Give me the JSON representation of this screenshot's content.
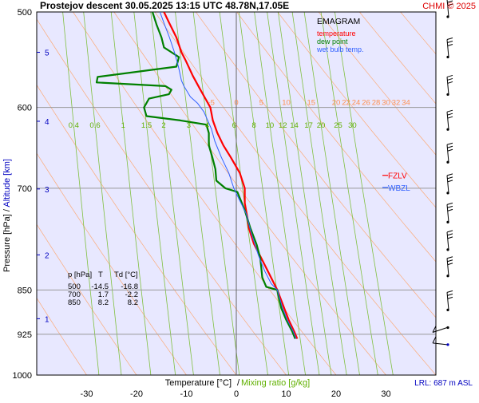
{
  "header": {
    "title": "Prostejov   descent   30.05.2025 13:15 UTC   48.78N,17.05E",
    "credit": "CHMI © 2025"
  },
  "legend": {
    "title": "EMAGRAM",
    "items": [
      {
        "label": "temperature",
        "color": "#ff0000"
      },
      {
        "label": "dew point",
        "color": "#008000"
      },
      {
        "label": "wet bulb temp.",
        "color": "#3060ff"
      }
    ]
  },
  "axes": {
    "x_label_temp": "Temperature [°C]",
    "x_label_sep": "/",
    "x_label_mix": "Mixing ratio [g/kg]",
    "y_label_pressure": "Pressure [hPa]",
    "y_label_sep": "/",
    "y_label_alt": "Altitude [km]",
    "lrl": "LRL: 687 m ASL"
  },
  "markers": {
    "fzlv": "FZLV",
    "wbzl": "WBZL"
  },
  "table": {
    "headers": [
      "p [hPa]",
      "T",
      "Td [°C]"
    ],
    "rows": [
      [
        "500",
        "-14.5",
        "-16.8"
      ],
      [
        "700",
        "1.7",
        "-2.2"
      ],
      [
        "850",
        "8.2",
        "8.2"
      ]
    ]
  },
  "colors": {
    "temperature": "#ff0000",
    "dewpoint": "#008000",
    "wetbulb": "#3060ff",
    "background": "#e8e8ff",
    "adiabat": "#ffa060",
    "mixing": "#80c040",
    "isobar": "#999999",
    "altitude": "#0000c0"
  },
  "chart_data": {
    "type": "line",
    "subtype": "emagram",
    "title": "EMAGRAM",
    "xlabel": "Temperature [°C]",
    "ylabel": "Pressure [hPa]",
    "xlim": [
      -40,
      40
    ],
    "ylim": [
      1000,
      500
    ],
    "y_scale": "log",
    "grid": true,
    "legend_position": "top-right",
    "x_ticks": [
      -30,
      -20,
      -10,
      0,
      10,
      20,
      30
    ],
    "y_ticks": [
      500,
      600,
      700,
      850,
      925,
      1000
    ],
    "altitude_ticks_km": [
      {
        "label": "1",
        "pressure": 898
      },
      {
        "label": "2",
        "pressure": 795
      },
      {
        "label": "3",
        "pressure": 701
      },
      {
        "label": "4",
        "pressure": 616
      },
      {
        "label": "5",
        "pressure": 540
      }
    ],
    "adiabat_labels": [
      "-5",
      "0",
      "5",
      "10",
      "15",
      "20",
      "22",
      "24",
      "26",
      "28",
      "30",
      "32",
      "34"
    ],
    "mixing_ratio_labels": [
      "0.4",
      "0.6",
      "1",
      "1.5",
      "2",
      "3",
      "4",
      "6",
      "8",
      "10",
      "12",
      "14",
      "17",
      "20",
      "25",
      "30"
    ],
    "series": [
      {
        "name": "temperature",
        "color": "#ff0000",
        "points": [
          [
            12.2,
            933
          ],
          [
            11.6,
            920
          ],
          [
            10.5,
            900
          ],
          [
            9.6,
            880
          ],
          [
            8.2,
            850
          ],
          [
            6.7,
            826
          ],
          [
            5.0,
            800
          ],
          [
            3.5,
            778
          ],
          [
            2.5,
            755
          ],
          [
            2.2,
            740
          ],
          [
            1.7,
            720
          ],
          [
            1.7,
            700
          ],
          [
            0.7,
            680
          ],
          [
            -1.1,
            660
          ],
          [
            -2.6,
            645
          ],
          [
            -3.8,
            630
          ],
          [
            -4.7,
            615
          ],
          [
            -5.2,
            600
          ],
          [
            -6.2,
            590
          ],
          [
            -7.2,
            580
          ],
          [
            -8.7,
            565
          ],
          [
            -10.2,
            548
          ],
          [
            -11.0,
            540
          ],
          [
            -12.0,
            525
          ],
          [
            -13.5,
            510
          ],
          [
            -14.5,
            500
          ]
        ]
      },
      {
        "name": "dew point",
        "color": "#008000",
        "points": [
          [
            11.8,
            933
          ],
          [
            11.2,
            920
          ],
          [
            10.0,
            900
          ],
          [
            9.0,
            880
          ],
          [
            8.2,
            850
          ],
          [
            6.0,
            845
          ],
          [
            5.2,
            830
          ],
          [
            5.0,
            815
          ],
          [
            4.8,
            800
          ],
          [
            4.1,
            780
          ],
          [
            2.8,
            755
          ],
          [
            1.7,
            730
          ],
          [
            0.2,
            705
          ],
          [
            -2.2,
            700
          ],
          [
            -4.0,
            690
          ],
          [
            -4.2,
            675
          ],
          [
            -4.8,
            660
          ],
          [
            -5.5,
            645
          ],
          [
            -5.5,
            630
          ],
          [
            -6.0,
            620
          ],
          [
            -11.2,
            615
          ],
          [
            -18.0,
            610
          ],
          [
            -18.5,
            600
          ],
          [
            -17.5,
            590
          ],
          [
            -13.5,
            585
          ],
          [
            -13.0,
            580
          ],
          [
            -14.2,
            576
          ],
          [
            -28.0,
            572
          ],
          [
            -27.8,
            566
          ],
          [
            -12.0,
            555
          ],
          [
            -11.5,
            545
          ],
          [
            -13.0,
            540
          ],
          [
            -14.5,
            535
          ],
          [
            -15.0,
            525
          ],
          [
            -16.0,
            512
          ],
          [
            -16.8,
            500
          ]
        ]
      },
      {
        "name": "wet bulb temp.",
        "color": "#3060ff",
        "points": [
          [
            12.0,
            933
          ],
          [
            11.4,
            920
          ],
          [
            10.2,
            900
          ],
          [
            9.3,
            880
          ],
          [
            8.2,
            850
          ],
          [
            7.0,
            840
          ],
          [
            5.7,
            820
          ],
          [
            4.4,
            795
          ],
          [
            2.9,
            760
          ],
          [
            2.0,
            735
          ],
          [
            0.2,
            710
          ],
          [
            -0.5,
            700
          ],
          [
            -1.5,
            680
          ],
          [
            -3.0,
            660
          ],
          [
            -4.3,
            640
          ],
          [
            -5.0,
            625
          ],
          [
            -6.5,
            605
          ],
          [
            -7.8,
            595
          ],
          [
            -9.2,
            588
          ],
          [
            -10.5,
            576
          ],
          [
            -11.0,
            570
          ],
          [
            -11.6,
            555
          ],
          [
            -12.4,
            540
          ],
          [
            -13.4,
            525
          ],
          [
            -14.4,
            512
          ],
          [
            -15.3,
            500
          ]
        ]
      }
    ],
    "levels": [
      {
        "name": "FZLV",
        "pressure": 683
      },
      {
        "name": "WBZL",
        "pressure": 699
      }
    ],
    "wind_barb_pressures": [
      500,
      540,
      580,
      620,
      660,
      700,
      740,
      780,
      820,
      875,
      905,
      935
    ]
  }
}
